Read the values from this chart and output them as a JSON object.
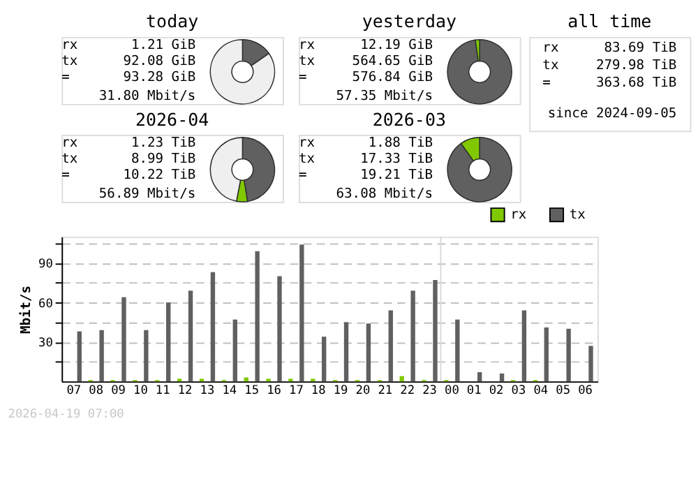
{
  "chart_data": [
    {
      "type": "donut",
      "title": "today",
      "categories": [
        null,
        null,
        null
      ],
      "values": [
        15.3,
        null,
        84.5
      ],
      "colors": [
        "#606060",
        "#80c800",
        "#efefef"
      ],
      "annotations": [
        "rx",
        "1.21 GiB",
        "tx",
        "92.08 GiB",
        "=",
        "93.28 GiB",
        "31.80 Mbit/s"
      ]
    },
    {
      "type": "donut",
      "title": "yesterday",
      "categories": [
        null,
        null
      ],
      "values": [
        97.9,
        2.1
      ],
      "colors": [
        "#606060",
        "#80c800"
      ],
      "annotations": [
        "rx",
        "12.19 GiB",
        "tx",
        "564.65 GiB",
        "=",
        "576.84 GiB",
        "57.35 Mbit/s"
      ]
    },
    {
      "type": "other",
      "title": "all time",
      "annotations": [
        "rx",
        "83.69 TiB",
        "tx",
        "279.98 TiB",
        "=",
        "363.68 TiB",
        "since 2024-09-05"
      ]
    },
    {
      "type": "donut",
      "title": "2026-04",
      "categories": [
        null,
        null,
        null
      ],
      "values": [
        47.5,
        5.5,
        47.0
      ],
      "colors": [
        "#606060",
        "#80c800",
        "#efefef"
      ],
      "annotations": [
        "rx",
        "1.23 TiB",
        "tx",
        "8.99 TiB",
        "=",
        "10.22 TiB",
        "56.89 Mbit/s"
      ]
    },
    {
      "type": "donut",
      "title": "2026-03",
      "categories": [
        null,
        null
      ],
      "values": [
        90.2,
        9.8
      ],
      "colors": [
        "#606060",
        "#80c800"
      ],
      "annotations": [
        "rx",
        "1.88 TiB",
        "tx",
        "17.33 TiB",
        "=",
        "19.21 TiB",
        "63.08 Mbit/s"
      ]
    },
    {
      "type": "bar",
      "ylabel": "Mbit/s",
      "categories": [
        "07",
        "08",
        "09",
        "10",
        "11",
        "12",
        "13",
        "14",
        "15",
        "16",
        "17",
        "18",
        "19",
        "20",
        "21",
        "22",
        "23",
        "00",
        "01",
        "02",
        "03",
        "04",
        "05",
        "06"
      ],
      "series": [
        {
          "name": "rx",
          "color": "#80c800",
          "values": [
            0,
            1,
            1,
            1,
            1,
            2,
            2,
            1,
            3,
            2,
            2,
            2,
            1,
            1,
            1,
            4,
            1,
            1,
            0,
            0,
            1,
            1,
            0,
            0
          ]
        },
        {
          "name": "tx",
          "color": "#606060",
          "values": [
            38,
            39,
            64,
            39,
            60,
            69,
            83,
            47,
            99,
            80,
            104,
            34,
            45,
            44,
            54,
            69,
            77,
            47,
            7,
            6,
            54,
            41,
            40,
            27
          ]
        }
      ],
      "ylim": [
        0,
        110
      ],
      "yticks": [
        {
          "value": 15,
          "label": null
        },
        30,
        {
          "value": 45,
          "label": null
        },
        60,
        {
          "value": 75,
          "label": null
        },
        90,
        {
          "value": 105,
          "label": null
        }
      ],
      "grid": "y",
      "legend": "top right",
      "ref_lines": [
        {
          "axis": "x",
          "value": "00",
          "color": "#d8d8d8"
        }
      ],
      "annotations": [
        "2026-04-19 07:00"
      ]
    }
  ]
}
